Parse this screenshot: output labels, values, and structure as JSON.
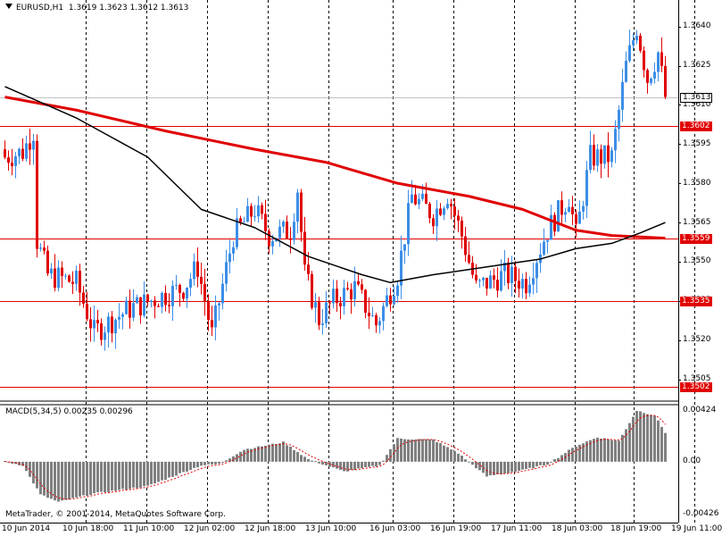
{
  "header": {
    "symbol_timeframe": "EURUSD,H1",
    "ohlc": "1.3619 1.3623 1.3612 1.3613"
  },
  "price_axis": {
    "ticks": [
      "1.3640",
      "1.3625",
      "1.3610",
      "1.3595",
      "1.3580",
      "1.3565",
      "1.3550",
      "1.3535",
      "1.3520",
      "1.3505"
    ]
  },
  "levels": [
    {
      "label": "1.3613",
      "kind": "current",
      "color": "#c0c0c0"
    },
    {
      "label": "1.3602",
      "kind": "line",
      "color": "#e00000"
    },
    {
      "label": "1.3559",
      "kind": "line",
      "color": "#e00000"
    },
    {
      "label": "1.3535",
      "kind": "line",
      "color": "#e00000"
    },
    {
      "label": "1.3502",
      "kind": "line",
      "color": "#e00000"
    }
  ],
  "indicator": {
    "title": "MACD(5,34,5) 0.00235 0.00296",
    "ticks": [
      "0.00424",
      "0.00",
      "-0.00426"
    ]
  },
  "time_axis": {
    "labels": [
      "10 Jun 2014",
      "10 Jun 18:00",
      "11 Jun 10:00",
      "12 Jun 02:00",
      "12 Jun 18:00",
      "13 Jun 10:00",
      "16 Jun 03:00",
      "16 Jun 19:00",
      "17 Jun 11:00",
      "18 Jun 03:00",
      "18 Jun 19:00",
      "19 Jun 11:00"
    ]
  },
  "copyright": "MetaTrader, © 2001-2014, MetaQuotes Software Corp.",
  "colors": {
    "bull": "#3c8ee6",
    "bear": "#e00000",
    "ma_fast": "#000000",
    "ma_slow": "#e00000",
    "histogram": "#808080",
    "signal": "#e00000"
  },
  "chart_data": {
    "type": "candlestick",
    "symbol": "EURUSD",
    "timeframe": "H1",
    "y_range": [
      1.3498,
      1.3645
    ],
    "macd_range": [
      -0.00426,
      0.00424
    ],
    "close_anchors": [
      {
        "bar": 0,
        "close": 1.359
      },
      {
        "bar": 5,
        "close": 1.3592
      },
      {
        "bar": 8,
        "close": 1.36
      },
      {
        "bar": 9,
        "close": 1.3558
      },
      {
        "bar": 12,
        "close": 1.3545
      },
      {
        "bar": 20,
        "close": 1.3542
      },
      {
        "bar": 25,
        "close": 1.3523
      },
      {
        "bar": 35,
        "close": 1.3532
      },
      {
        "bar": 50,
        "close": 1.354
      },
      {
        "bar": 54,
        "close": 1.3548
      },
      {
        "bar": 58,
        "close": 1.3522
      },
      {
        "bar": 64,
        "close": 1.356
      },
      {
        "bar": 70,
        "close": 1.357
      },
      {
        "bar": 74,
        "close": 1.356
      },
      {
        "bar": 80,
        "close": 1.3562
      },
      {
        "bar": 82,
        "close": 1.3578
      },
      {
        "bar": 84,
        "close": 1.3545
      },
      {
        "bar": 88,
        "close": 1.3528
      },
      {
        "bar": 92,
        "close": 1.3535
      },
      {
        "bar": 98,
        "close": 1.354
      },
      {
        "bar": 104,
        "close": 1.3526
      },
      {
        "bar": 110,
        "close": 1.3545
      },
      {
        "bar": 114,
        "close": 1.3575
      },
      {
        "bar": 120,
        "close": 1.3568
      },
      {
        "bar": 124,
        "close": 1.3576
      },
      {
        "bar": 128,
        "close": 1.356
      },
      {
        "bar": 132,
        "close": 1.354
      },
      {
        "bar": 140,
        "close": 1.3545
      },
      {
        "bar": 146,
        "close": 1.3542
      },
      {
        "bar": 152,
        "close": 1.3562
      },
      {
        "bar": 158,
        "close": 1.3575
      },
      {
        "bar": 160,
        "close": 1.356
      },
      {
        "bar": 164,
        "close": 1.359
      },
      {
        "bar": 170,
        "close": 1.359
      },
      {
        "bar": 174,
        "close": 1.3625
      },
      {
        "bar": 177,
        "close": 1.364
      },
      {
        "bar": 180,
        "close": 1.362
      },
      {
        "bar": 183,
        "close": 1.363
      },
      {
        "bar": 185,
        "close": 1.3613
      }
    ],
    "ma_fast": [
      {
        "bar": 0,
        "value": 1.3617
      },
      {
        "bar": 20,
        "value": 1.3605
      },
      {
        "bar": 40,
        "value": 1.359
      },
      {
        "bar": 55,
        "value": 1.357
      },
      {
        "bar": 70,
        "value": 1.3563
      },
      {
        "bar": 85,
        "value": 1.3552
      },
      {
        "bar": 100,
        "value": 1.3545
      },
      {
        "bar": 108,
        "value": 1.3542
      },
      {
        "bar": 120,
        "value": 1.3545
      },
      {
        "bar": 135,
        "value": 1.3548
      },
      {
        "bar": 150,
        "value": 1.3551
      },
      {
        "bar": 160,
        "value": 1.3555
      },
      {
        "bar": 170,
        "value": 1.3557
      },
      {
        "bar": 178,
        "value": 1.3561
      },
      {
        "bar": 185,
        "value": 1.3565
      }
    ],
    "ma_slow": [
      {
        "bar": 0,
        "value": 1.3613
      },
      {
        "bar": 20,
        "value": 1.3608
      },
      {
        "bar": 45,
        "value": 1.36
      },
      {
        "bar": 70,
        "value": 1.3593
      },
      {
        "bar": 90,
        "value": 1.3588
      },
      {
        "bar": 110,
        "value": 1.358
      },
      {
        "bar": 130,
        "value": 1.3575
      },
      {
        "bar": 145,
        "value": 1.357
      },
      {
        "bar": 160,
        "value": 1.3562
      },
      {
        "bar": 170,
        "value": 1.356
      },
      {
        "bar": 185,
        "value": 1.3559
      }
    ],
    "macd_anchors": [
      {
        "bar": 0,
        "value": 0.0
      },
      {
        "bar": 5,
        "value": -0.0003
      },
      {
        "bar": 10,
        "value": -0.0027
      },
      {
        "bar": 15,
        "value": -0.0033
      },
      {
        "bar": 25,
        "value": -0.0026
      },
      {
        "bar": 40,
        "value": -0.002
      },
      {
        "bar": 55,
        "value": -0.0003
      },
      {
        "bar": 60,
        "value": -0.0002
      },
      {
        "bar": 67,
        "value": 0.001
      },
      {
        "bar": 78,
        "value": 0.0016
      },
      {
        "bar": 85,
        "value": 0.0002
      },
      {
        "bar": 95,
        "value": -0.0008
      },
      {
        "bar": 105,
        "value": -0.0003
      },
      {
        "bar": 110,
        "value": 0.0019
      },
      {
        "bar": 120,
        "value": 0.0018
      },
      {
        "bar": 127,
        "value": 0.0007
      },
      {
        "bar": 135,
        "value": -0.0012
      },
      {
        "bar": 145,
        "value": -0.0007
      },
      {
        "bar": 152,
        "value": -0.0002
      },
      {
        "bar": 160,
        "value": 0.0013
      },
      {
        "bar": 166,
        "value": 0.002
      },
      {
        "bar": 172,
        "value": 0.0017
      },
      {
        "bar": 177,
        "value": 0.0042
      },
      {
        "bar": 182,
        "value": 0.0038
      },
      {
        "bar": 185,
        "value": 0.0024
      }
    ]
  }
}
